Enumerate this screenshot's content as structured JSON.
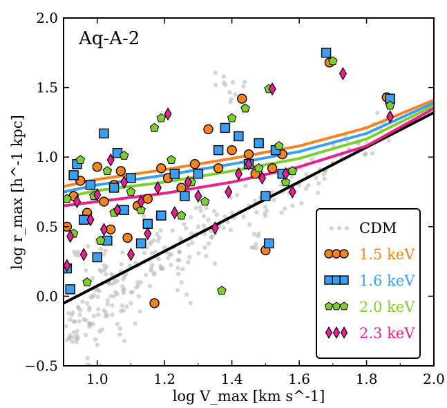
{
  "chart_data": {
    "type": "scatter",
    "title": "Aq-A-2",
    "xlabel": "log V_max [km s^-1]",
    "ylabel": "log r_max [h^-1 kpc]",
    "xlim": [
      0.9,
      2.0
    ],
    "ylim": [
      -0.5,
      2.0
    ],
    "xticks": [
      "1.0",
      "1.2",
      "1.4",
      "1.6",
      "1.8",
      "2.0"
    ],
    "yticks": [
      "−0.5",
      "0.0",
      "0.5",
      "1.0",
      "1.5",
      "2.0"
    ],
    "legend": {
      "placement": "lower-right"
    },
    "series": [
      {
        "name": "CDM",
        "marker": "dot",
        "color": "#b5b5b5",
        "points": [
          [
            0.92,
            -0.3
          ],
          [
            0.93,
            -0.18
          ],
          [
            0.95,
            -0.1
          ],
          [
            0.94,
            -0.25
          ],
          [
            0.97,
            -0.05
          ],
          [
            0.98,
            -0.2
          ],
          [
            1.0,
            0.05
          ],
          [
            1.02,
            -0.1
          ],
          [
            1.03,
            0.1
          ],
          [
            1.05,
            0.0
          ],
          [
            1.06,
            0.15
          ],
          [
            1.08,
            0.05
          ],
          [
            1.1,
            0.2
          ],
          [
            1.12,
            0.1
          ],
          [
            1.14,
            0.25
          ],
          [
            1.16,
            0.2
          ],
          [
            1.18,
            0.3
          ],
          [
            1.2,
            0.35
          ],
          [
            1.22,
            0.3
          ],
          [
            1.25,
            0.4
          ],
          [
            1.28,
            0.45
          ],
          [
            1.3,
            0.5
          ],
          [
            1.33,
            0.55
          ],
          [
            1.36,
            0.5
          ],
          [
            1.4,
            0.6
          ],
          [
            1.45,
            0.65
          ],
          [
            1.5,
            0.7
          ],
          [
            1.55,
            0.75
          ],
          [
            1.6,
            0.8
          ],
          [
            1.65,
            0.85
          ],
          [
            1.7,
            0.95
          ],
          [
            1.75,
            1.05
          ],
          [
            1.8,
            1.1
          ],
          [
            1.85,
            1.25
          ],
          [
            1.38,
            1.52
          ],
          [
            1.41,
            1.45
          ],
          [
            1.02,
            0.3
          ],
          [
            1.06,
            -0.2
          ],
          [
            1.0,
            -0.35
          ],
          [
            0.96,
            0.3
          ],
          [
            1.1,
            -0.05
          ],
          [
            1.15,
            0.45
          ],
          [
            1.25,
            0.1
          ],
          [
            1.32,
            0.35
          ],
          [
            1.48,
            0.45
          ]
        ]
      },
      {
        "name": "1.5 keV",
        "marker": "circle",
        "color": "#f7841e",
        "line": [
          [
            0.9,
            0.79
          ],
          [
            1.0,
            0.84
          ],
          [
            1.2,
            0.91
          ],
          [
            1.4,
            0.99
          ],
          [
            1.6,
            1.08
          ],
          [
            1.8,
            1.21
          ],
          [
            2.0,
            1.41
          ]
        ],
        "points": [
          [
            0.91,
            0.5
          ],
          [
            0.93,
            0.72
          ],
          [
            0.95,
            0.83
          ],
          [
            0.97,
            0.6
          ],
          [
            1.0,
            0.93
          ],
          [
            1.02,
            0.68
          ],
          [
            1.04,
            0.48
          ],
          [
            1.05,
            0.8
          ],
          [
            1.07,
            0.9
          ],
          [
            1.09,
            0.42
          ],
          [
            1.12,
            0.65
          ],
          [
            1.15,
            0.7
          ],
          [
            1.17,
            -0.05
          ],
          [
            1.19,
            0.92
          ],
          [
            1.21,
            0.85
          ],
          [
            1.25,
            0.78
          ],
          [
            1.29,
            0.95
          ],
          [
            1.33,
            1.2
          ],
          [
            1.36,
            0.92
          ],
          [
            1.4,
            1.05
          ],
          [
            1.42,
            1.15
          ],
          [
            1.43,
            1.42
          ],
          [
            1.45,
            1.02
          ],
          [
            1.47,
            0.88
          ],
          [
            1.5,
            0.33
          ],
          [
            1.52,
            0.92
          ],
          [
            1.55,
            1.02
          ],
          [
            1.69,
            1.68
          ],
          [
            1.86,
            1.43
          ]
        ]
      },
      {
        "name": "1.6 keV",
        "marker": "square",
        "color": "#3a9ff0",
        "line": [
          [
            0.9,
            0.75
          ],
          [
            1.0,
            0.8
          ],
          [
            1.2,
            0.87
          ],
          [
            1.4,
            0.95
          ],
          [
            1.6,
            1.04
          ],
          [
            1.8,
            1.17
          ],
          [
            2.0,
            1.39
          ]
        ],
        "points": [
          [
            0.91,
            0.2
          ],
          [
            0.92,
            0.05
          ],
          [
            0.93,
            0.87
          ],
          [
            0.94,
            0.95
          ],
          [
            0.96,
            0.55
          ],
          [
            0.98,
            0.8
          ],
          [
            1.0,
            0.28
          ],
          [
            1.02,
            1.17
          ],
          [
            1.03,
            0.4
          ],
          [
            1.05,
            0.78
          ],
          [
            1.06,
            1.03
          ],
          [
            1.08,
            0.62
          ],
          [
            1.1,
            0.85
          ],
          [
            1.13,
            0.38
          ],
          [
            1.15,
            0.52
          ],
          [
            1.19,
            0.58
          ],
          [
            1.23,
            0.88
          ],
          [
            1.26,
            0.72
          ],
          [
            1.3,
            0.88
          ],
          [
            1.36,
            1.05
          ],
          [
            1.38,
            1.21
          ],
          [
            1.42,
            1.15
          ],
          [
            1.45,
            0.95
          ],
          [
            1.48,
            1.1
          ],
          [
            1.5,
            0.72
          ],
          [
            1.51,
            0.38
          ],
          [
            1.53,
            1.05
          ],
          [
            1.55,
            0.88
          ],
          [
            1.68,
            1.75
          ],
          [
            1.87,
            1.42
          ]
        ]
      },
      {
        "name": "2.0 keV",
        "marker": "pentagon",
        "color": "#7dce2e",
        "line": [
          [
            0.9,
            0.71
          ],
          [
            1.0,
            0.76
          ],
          [
            1.2,
            0.82
          ],
          [
            1.4,
            0.9
          ],
          [
            1.6,
            0.99
          ],
          [
            1.8,
            1.13
          ],
          [
            2.0,
            1.37
          ]
        ],
        "points": [
          [
            0.91,
            0.7
          ],
          [
            0.93,
            0.45
          ],
          [
            0.95,
            0.98
          ],
          [
            0.97,
            0.1
          ],
          [
            0.99,
            0.72
          ],
          [
            1.01,
            0.4
          ],
          [
            1.03,
            0.9
          ],
          [
            1.05,
            0.6
          ],
          [
            1.08,
            1.01
          ],
          [
            1.1,
            0.75
          ],
          [
            1.13,
            0.62
          ],
          [
            1.17,
            1.21
          ],
          [
            1.19,
            1.28
          ],
          [
            1.22,
            0.98
          ],
          [
            1.25,
            0.58
          ],
          [
            1.28,
            0.82
          ],
          [
            1.32,
            0.68
          ],
          [
            1.37,
            0.04
          ],
          [
            1.4,
            1.28
          ],
          [
            1.44,
            1.35
          ],
          [
            1.48,
            0.92
          ],
          [
            1.51,
            1.49
          ],
          [
            1.54,
            1.08
          ],
          [
            1.56,
            0.82
          ],
          [
            1.58,
            0.9
          ],
          [
            1.7,
            1.69
          ],
          [
            1.87,
            1.37
          ]
        ]
      },
      {
        "name": "2.3 keV",
        "marker": "diamond",
        "color": "#e8218e",
        "line": [
          [
            0.9,
            0.65
          ],
          [
            1.0,
            0.68
          ],
          [
            1.2,
            0.74
          ],
          [
            1.4,
            0.82
          ],
          [
            1.6,
            0.93
          ],
          [
            1.8,
            1.08
          ],
          [
            2.0,
            1.35
          ]
        ],
        "points": [
          [
            0.91,
            0.22
          ],
          [
            0.92,
            0.43
          ],
          [
            0.94,
            0.68
          ],
          [
            0.96,
            0.3
          ],
          [
            0.98,
            0.55
          ],
          [
            1.0,
            0.73
          ],
          [
            1.02,
            0.48
          ],
          [
            1.04,
            0.98
          ],
          [
            1.06,
            0.62
          ],
          [
            1.08,
            0.82
          ],
          [
            1.1,
            0.3
          ],
          [
            1.13,
            0.68
          ],
          [
            1.15,
            0.45
          ],
          [
            1.18,
            0.78
          ],
          [
            1.21,
            1.31
          ],
          [
            1.23,
            0.6
          ],
          [
            1.27,
            0.82
          ],
          [
            1.3,
            0.72
          ],
          [
            1.35,
            0.49
          ],
          [
            1.39,
            0.75
          ],
          [
            1.42,
            0.88
          ],
          [
            1.45,
            0.95
          ],
          [
            1.49,
            0.85
          ],
          [
            1.52,
            1.49
          ],
          [
            1.56,
            0.88
          ],
          [
            1.58,
            0.75
          ],
          [
            1.73,
            1.6
          ],
          [
            1.87,
            1.29
          ]
        ]
      }
    ],
    "reference_line": {
      "color": "#000000",
      "points": [
        [
          0.9,
          -0.05
        ],
        [
          2.0,
          1.32
        ]
      ]
    }
  }
}
